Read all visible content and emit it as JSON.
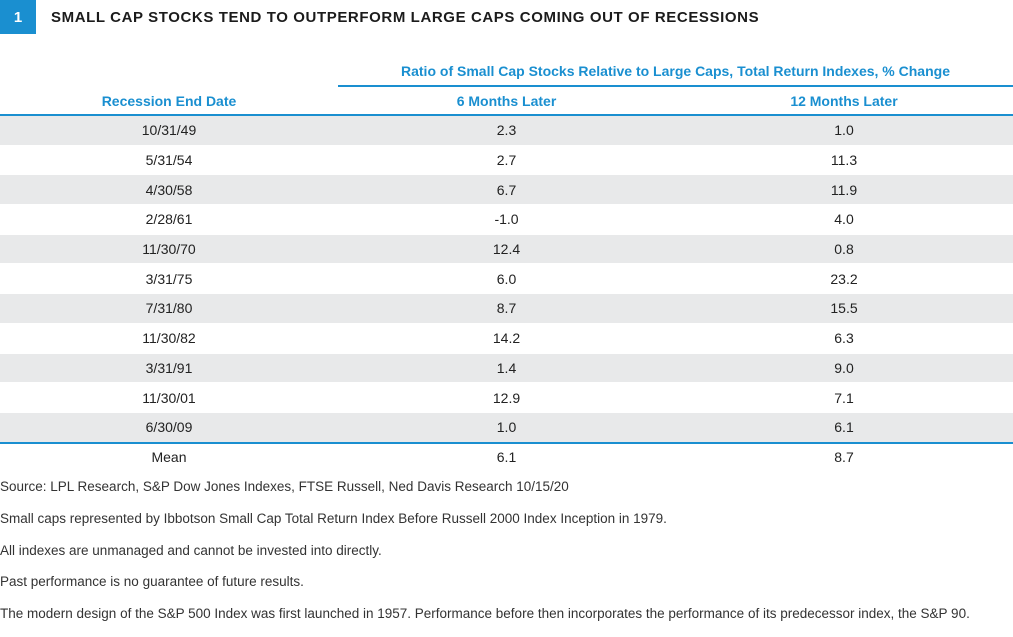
{
  "figure": {
    "number": "1",
    "title": "SMALL CAP STOCKS TEND TO OUTPERFORM LARGE CAPS COMING OUT OF RECESSIONS"
  },
  "chart_data": {
    "type": "table",
    "title": "SMALL CAP STOCKS TEND TO OUTPERFORM LARGE CAPS COMING OUT OF RECESSIONS",
    "super_header": "Ratio of Small Cap Stocks Relative to Large Caps, Total Return Indexes, % Change",
    "columns": [
      "Recession End Date",
      "6 Months Later",
      "12 Months Later"
    ],
    "rows": [
      [
        "10/31/49",
        "2.3",
        "1.0"
      ],
      [
        "5/31/54",
        "2.7",
        "11.3"
      ],
      [
        "4/30/58",
        "6.7",
        "11.9"
      ],
      [
        "2/28/61",
        "-1.0",
        "4.0"
      ],
      [
        "11/30/70",
        "12.4",
        "0.8"
      ],
      [
        "3/31/75",
        "6.0",
        "23.2"
      ],
      [
        "7/31/80",
        "8.7",
        "15.5"
      ],
      [
        "11/30/82",
        "14.2",
        "6.3"
      ],
      [
        "3/31/91",
        "1.4",
        "9.0"
      ],
      [
        "11/30/01",
        "12.9",
        "7.1"
      ],
      [
        "6/30/09",
        "1.0",
        "6.1"
      ]
    ],
    "summary": [
      "Mean",
      "6.1",
      "8.7"
    ],
    "colors": {
      "accent": "#1a8fd0",
      "row_shade": "#e8e9ea"
    }
  },
  "notes": [
    "Source: LPL Research, S&P Dow Jones Indexes, FTSE Russell, Ned Davis Research   10/15/20",
    "Small caps represented by Ibbotson Small Cap Total Return Index Before Russell 2000 Index Inception in 1979.",
    "All indexes are unmanaged and cannot be invested into directly.",
    "Past performance is no guarantee of future results.",
    "The modern design of the S&P 500 Index was first launched in 1957. Performance before then incorporates the performance of its predecessor index, the S&P 90."
  ]
}
